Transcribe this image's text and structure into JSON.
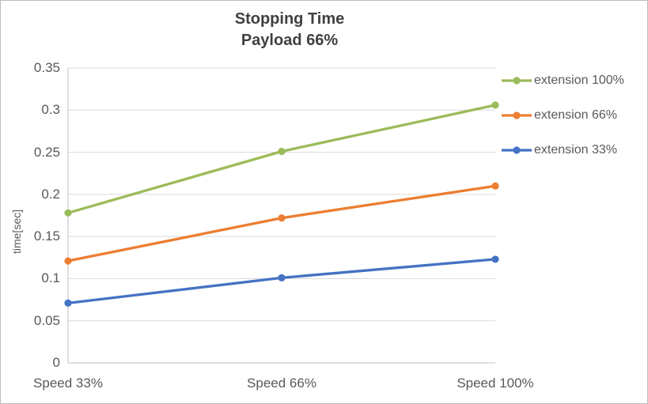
{
  "chart_data": {
    "type": "line",
    "title": "Stopping Time",
    "subtitle": "Payload 66%",
    "ylabel": "time[sec]",
    "categories": [
      "Speed 33%",
      "Speed 66%",
      "Speed 100%"
    ],
    "series": [
      {
        "name": "extension 100%",
        "color": "#9BBB59",
        "values": [
          0.178,
          0.251,
          0.306
        ]
      },
      {
        "name": "extension 66%",
        "color": "#ED7D31",
        "values": [
          0.121,
          0.172,
          0.21
        ]
      },
      {
        "name": "extension 33%",
        "color": "#4472C4",
        "values": [
          0.071,
          0.101,
          0.123
        ]
      }
    ],
    "ylim": [
      0,
      0.35
    ],
    "ytick_step": 0.05,
    "yticks": [
      "0",
      "0.05",
      "0.1",
      "0.15",
      "0.2",
      "0.25",
      "0.3",
      "0.35"
    ],
    "grid": true,
    "legend_position": "right",
    "grid_color": "#D9D9D9",
    "axis_color": "#BFBFBF"
  }
}
